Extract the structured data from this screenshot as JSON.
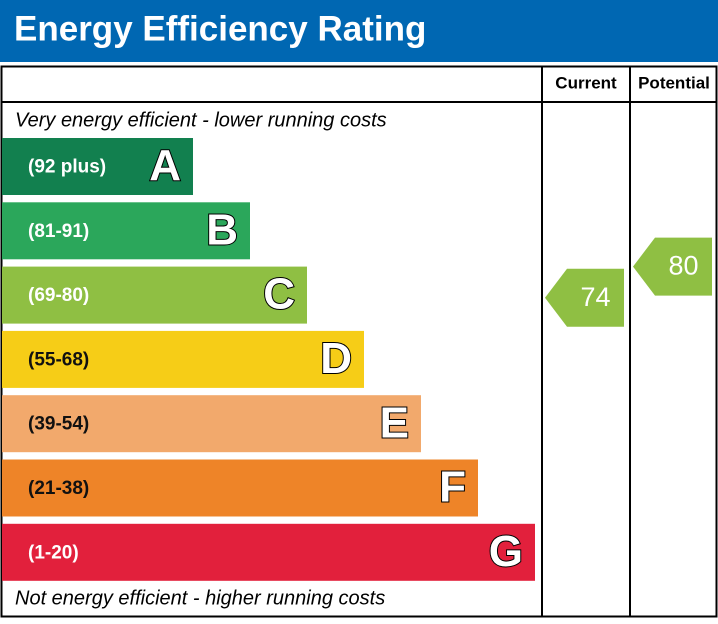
{
  "header": {
    "title": "Energy Efficiency Rating"
  },
  "columns": {
    "current": "Current",
    "potential": "Potential"
  },
  "top_note": "Very energy efficient - lower running costs",
  "bottom_note": "Not energy efficient - higher running costs",
  "bands": [
    {
      "range": "(92 plus)",
      "letter": "A",
      "color": "#12804f"
    },
    {
      "range": "(81-91)",
      "letter": "B",
      "color": "#2ba75b"
    },
    {
      "range": "(69-80)",
      "letter": "C",
      "color": "#8fbf43"
    },
    {
      "range": "(55-68)",
      "letter": "D",
      "color": "#f6cd17"
    },
    {
      "range": "(39-54)",
      "letter": "E",
      "color": "#f2a96c"
    },
    {
      "range": "(21-38)",
      "letter": "F",
      "color": "#ee8428"
    },
    {
      "range": "(1-20)",
      "letter": "G",
      "color": "#e2203c"
    }
  ],
  "current": 74,
  "potential": 80
}
